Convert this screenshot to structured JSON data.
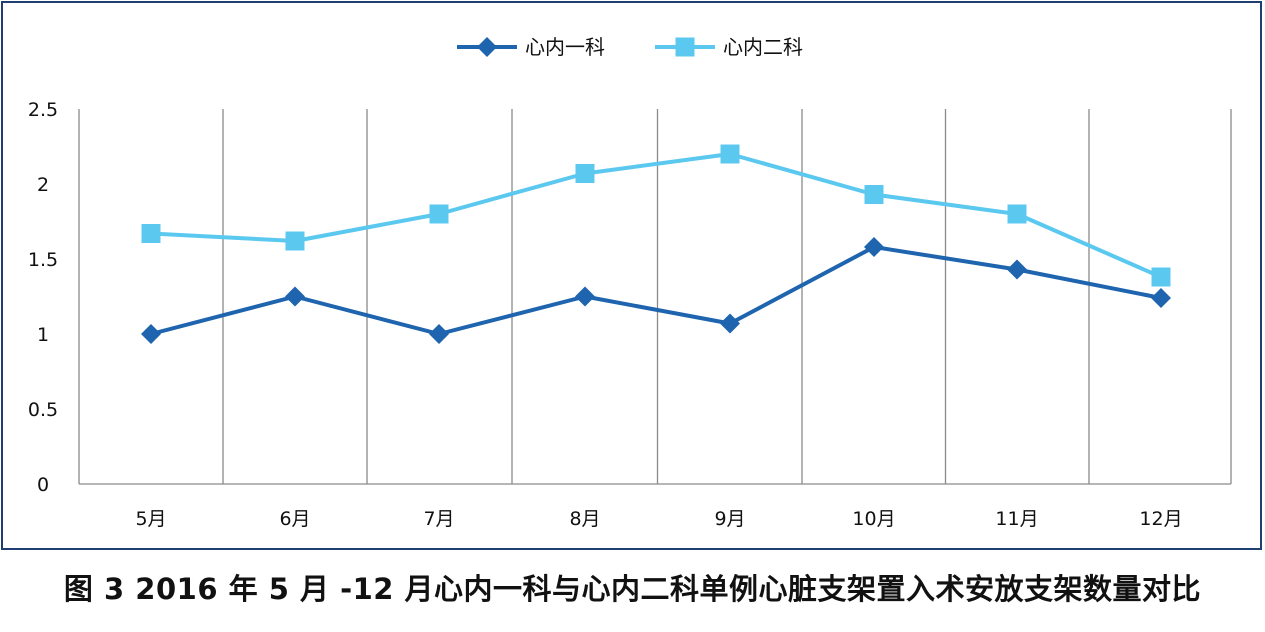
{
  "caption": "图 3  2016 年 5 月 -12 月心内一科与心内二科单例心脏支架置入术安放支架数量对比",
  "chart_data": {
    "type": "line",
    "title": "",
    "xlabel": "",
    "ylabel": "",
    "categories": [
      "5月",
      "6月",
      "7月",
      "8月",
      "9月",
      "10月",
      "11月",
      "12月"
    ],
    "y_ticks": [
      "0",
      "0.5",
      "1",
      "1.5",
      "2",
      "2.5"
    ],
    "ylim": [
      0,
      2.5
    ],
    "grid": "vertical category lines",
    "legend_position": "top-center",
    "series": [
      {
        "name": "心内一科",
        "marker": "diamond",
        "color": "#1e64ae",
        "values": [
          1.0,
          1.25,
          1.0,
          1.25,
          1.07,
          1.58,
          1.43,
          1.24
        ]
      },
      {
        "name": "心内二科",
        "marker": "square",
        "color": "#5bc8f0",
        "values": [
          1.67,
          1.62,
          1.8,
          2.07,
          2.2,
          1.93,
          1.8,
          1.38
        ]
      }
    ]
  }
}
